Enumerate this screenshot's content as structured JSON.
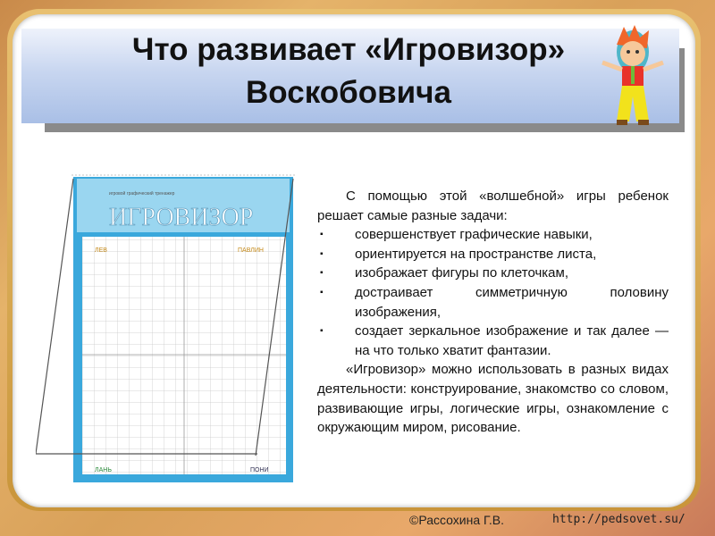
{
  "title": {
    "line1": "Что развивает «Игровизор»",
    "line2": "Воскобовича"
  },
  "image": {
    "heading": "ИГРОВИЗОР",
    "subtitle": "игровой графический тренажер",
    "corners": [
      "ЛЕВ",
      "ПАВЛИН",
      "ЛАНЬ",
      "ПОНИ"
    ]
  },
  "body": {
    "intro": "С помощью этой «волшебной» игры ребенок решает самые разные задачи:",
    "bullets": [
      "совершенствует графические навыки,",
      "ориентируется на пространстве листа,",
      "изображает фигуры по клеточкам,",
      "достраивает симметричную половину изображения,",
      "создает зеркальное изображение и так далее — на что только хватит фантазии."
    ],
    "closing": "«Игровизор» можно использовать в разных видах деятельности: конструирование, знакомство со словом, развивающие игры, логические игры, ознакомление с окружающим миром, рисование."
  },
  "footer": {
    "author": "©Рассохина Г.В.",
    "url": "http://pedsovet.su/"
  },
  "colors": {
    "banner": "#b8cbec",
    "board": "#3aa8dc",
    "frame": "#d9a04a"
  }
}
